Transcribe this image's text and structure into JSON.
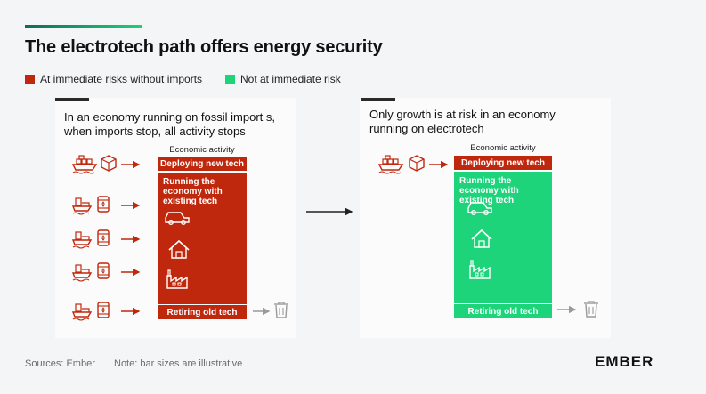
{
  "title": "The electrotech path offers energy security",
  "legend": {
    "items": [
      {
        "label": "At immediate risks without imports",
        "color": "#c0280e"
      },
      {
        "label": "Not at immediate risk",
        "color": "#1dd47b"
      }
    ]
  },
  "left_panel": {
    "title_line1": "In an economy running on fossil import s,",
    "title_line2": "when imports stop, all activity stops",
    "economic_activity": "Economic activity",
    "deploying": "Deploying new tech",
    "running_line1": "Running the",
    "running_line2": "economy with",
    "running_line3": "existing tech",
    "retiring": "Retiring old tech"
  },
  "right_panel": {
    "title_line1": "Only growth is at risk in an economy",
    "title_line2": "running on electrotech",
    "economic_activity": "Economic activity",
    "deploying": "Deploying new tech",
    "running_line1": "Running the",
    "running_line2": "economy with",
    "running_line3": "existing tech",
    "retiring": "Retiring old tech"
  },
  "icons": {
    "import_ship": "cargo-ship-icon",
    "import_box": "package-box-icon",
    "fuel_ship": "tanker-ship-icon",
    "fuel_barrel": "oil-barrel-icon",
    "car": "car-icon",
    "house": "house-icon",
    "factory": "factory-icon",
    "trash": "trash-bin-icon"
  },
  "footer": {
    "sources": "Sources: Ember",
    "note": "Note: bar sizes are illustrative"
  },
  "logo": "EMBER",
  "colors": {
    "risk": "#c0280e",
    "safe": "#1dd47b",
    "icon_red": "#c0280e",
    "icon_grey": "#9a9a9a"
  }
}
